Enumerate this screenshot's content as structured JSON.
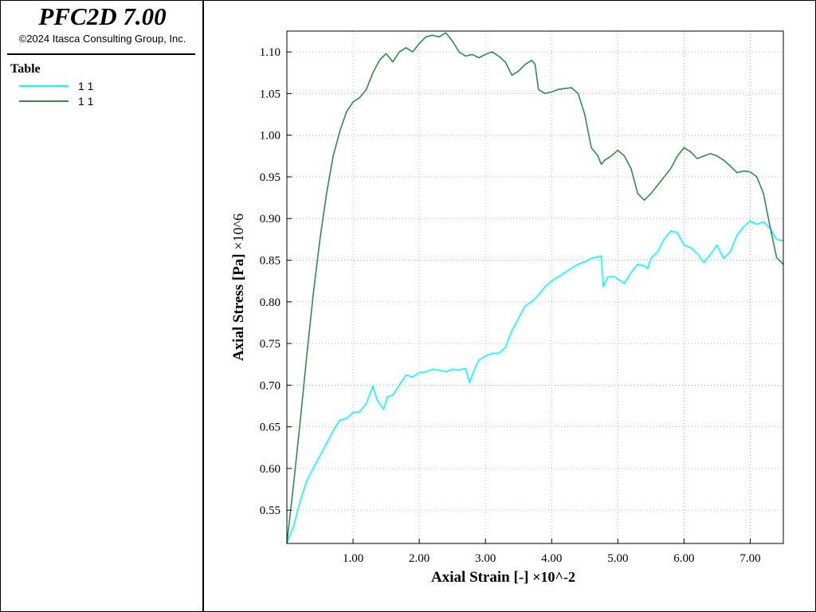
{
  "app": {
    "title": "PFC2D 7.00",
    "copyright": "©2024 Itasca Consulting Group, Inc."
  },
  "legend": {
    "heading": "Table",
    "entries": [
      {
        "label": "1 1",
        "color": "#00ffff"
      },
      {
        "label": "1 1",
        "color": "#2e8b57"
      }
    ]
  },
  "chart_data": {
    "type": "line",
    "xlabel": "Axial Strain [-]",
    "xmultiplier": "×10^-2",
    "ylabel": "Axial Stress [Pa]",
    "ymultiplier": "×10^6",
    "xlim": [
      0.0,
      7.5
    ],
    "ylim": [
      0.51,
      1.125
    ],
    "xticks": [
      1.0,
      2.0,
      3.0,
      4.0,
      5.0,
      6.0,
      7.0
    ],
    "xtick_labels": [
      "1.00",
      "2.00",
      "3.00",
      "4.00",
      "5.00",
      "6.00",
      "7.00"
    ],
    "yticks": [
      0.55,
      0.6,
      0.65,
      0.7,
      0.75,
      0.8,
      0.85,
      0.9,
      0.95,
      1.0,
      1.05,
      1.1
    ],
    "ytick_labels": [
      "0.55",
      "0.60",
      "0.65",
      "0.70",
      "0.75",
      "0.80",
      "0.85",
      "0.90",
      "0.95",
      "1.00",
      "1.05",
      "1.10"
    ],
    "grid": true,
    "legend_position": "sidebar",
    "series": [
      {
        "color": "#00ffff",
        "points": [
          [
            0.0,
            0.51
          ],
          [
            0.1,
            0.53
          ],
          [
            0.2,
            0.56
          ],
          [
            0.3,
            0.585
          ],
          [
            0.4,
            0.6
          ],
          [
            0.5,
            0.615
          ],
          [
            0.6,
            0.63
          ],
          [
            0.7,
            0.645
          ],
          [
            0.8,
            0.658
          ],
          [
            0.9,
            0.66
          ],
          [
            1.0,
            0.667
          ],
          [
            1.1,
            0.668
          ],
          [
            1.2,
            0.678
          ],
          [
            1.3,
            0.699
          ],
          [
            1.36,
            0.683
          ],
          [
            1.4,
            0.678
          ],
          [
            1.46,
            0.671
          ],
          [
            1.52,
            0.686
          ],
          [
            1.6,
            0.688
          ],
          [
            1.7,
            0.7
          ],
          [
            1.8,
            0.712
          ],
          [
            1.9,
            0.71
          ],
          [
            2.0,
            0.715
          ],
          [
            2.1,
            0.716
          ],
          [
            2.2,
            0.719
          ],
          [
            2.3,
            0.718
          ],
          [
            2.4,
            0.716
          ],
          [
            2.5,
            0.719
          ],
          [
            2.6,
            0.718
          ],
          [
            2.7,
            0.72
          ],
          [
            2.76,
            0.703
          ],
          [
            2.82,
            0.716
          ],
          [
            2.9,
            0.73
          ],
          [
            3.0,
            0.735
          ],
          [
            3.1,
            0.738
          ],
          [
            3.2,
            0.738
          ],
          [
            3.3,
            0.745
          ],
          [
            3.4,
            0.765
          ],
          [
            3.5,
            0.78
          ],
          [
            3.6,
            0.795
          ],
          [
            3.7,
            0.8
          ],
          [
            3.8,
            0.808
          ],
          [
            3.9,
            0.818
          ],
          [
            4.0,
            0.825
          ],
          [
            4.1,
            0.83
          ],
          [
            4.2,
            0.835
          ],
          [
            4.3,
            0.84
          ],
          [
            4.4,
            0.845
          ],
          [
            4.5,
            0.848
          ],
          [
            4.6,
            0.852
          ],
          [
            4.75,
            0.855
          ],
          [
            4.78,
            0.818
          ],
          [
            4.85,
            0.83
          ],
          [
            4.95,
            0.83
          ],
          [
            5.1,
            0.822
          ],
          [
            5.2,
            0.835
          ],
          [
            5.3,
            0.845
          ],
          [
            5.4,
            0.843
          ],
          [
            5.45,
            0.84
          ],
          [
            5.5,
            0.852
          ],
          [
            5.6,
            0.86
          ],
          [
            5.7,
            0.875
          ],
          [
            5.8,
            0.885
          ],
          [
            5.9,
            0.883
          ],
          [
            6.0,
            0.868
          ],
          [
            6.1,
            0.865
          ],
          [
            6.2,
            0.858
          ],
          [
            6.3,
            0.847
          ],
          [
            6.4,
            0.857
          ],
          [
            6.5,
            0.868
          ],
          [
            6.6,
            0.852
          ],
          [
            6.7,
            0.86
          ],
          [
            6.8,
            0.88
          ],
          [
            6.9,
            0.89
          ],
          [
            7.0,
            0.897
          ],
          [
            7.1,
            0.893
          ],
          [
            7.2,
            0.896
          ],
          [
            7.3,
            0.888
          ],
          [
            7.4,
            0.875
          ],
          [
            7.5,
            0.873
          ]
        ]
      },
      {
        "color": "#2e8b57",
        "points": [
          [
            0.0,
            0.51
          ],
          [
            0.1,
            0.58
          ],
          [
            0.2,
            0.655
          ],
          [
            0.3,
            0.735
          ],
          [
            0.4,
            0.81
          ],
          [
            0.5,
            0.875
          ],
          [
            0.6,
            0.93
          ],
          [
            0.7,
            0.975
          ],
          [
            0.8,
            1.005
          ],
          [
            0.9,
            1.028
          ],
          [
            1.0,
            1.04
          ],
          [
            1.1,
            1.045
          ],
          [
            1.2,
            1.055
          ],
          [
            1.3,
            1.075
          ],
          [
            1.4,
            1.09
          ],
          [
            1.5,
            1.098
          ],
          [
            1.6,
            1.088
          ],
          [
            1.7,
            1.1
          ],
          [
            1.8,
            1.105
          ],
          [
            1.9,
            1.1
          ],
          [
            2.0,
            1.11
          ],
          [
            2.1,
            1.118
          ],
          [
            2.2,
            1.12
          ],
          [
            2.3,
            1.118
          ],
          [
            2.4,
            1.123
          ],
          [
            2.5,
            1.113
          ],
          [
            2.6,
            1.1
          ],
          [
            2.7,
            1.095
          ],
          [
            2.8,
            1.097
          ],
          [
            2.9,
            1.093
          ],
          [
            3.0,
            1.097
          ],
          [
            3.1,
            1.1
          ],
          [
            3.2,
            1.095
          ],
          [
            3.3,
            1.088
          ],
          [
            3.4,
            1.072
          ],
          [
            3.5,
            1.077
          ],
          [
            3.6,
            1.085
          ],
          [
            3.7,
            1.09
          ],
          [
            3.75,
            1.085
          ],
          [
            3.8,
            1.055
          ],
          [
            3.9,
            1.05
          ],
          [
            4.0,
            1.052
          ],
          [
            4.1,
            1.055
          ],
          [
            4.2,
            1.056
          ],
          [
            4.3,
            1.057
          ],
          [
            4.4,
            1.05
          ],
          [
            4.5,
            1.025
          ],
          [
            4.6,
            0.985
          ],
          [
            4.7,
            0.975
          ],
          [
            4.75,
            0.965
          ],
          [
            4.8,
            0.97
          ],
          [
            4.9,
            0.975
          ],
          [
            5.0,
            0.982
          ],
          [
            5.1,
            0.975
          ],
          [
            5.2,
            0.96
          ],
          [
            5.3,
            0.93
          ],
          [
            5.4,
            0.922
          ],
          [
            5.5,
            0.93
          ],
          [
            5.6,
            0.94
          ],
          [
            5.7,
            0.95
          ],
          [
            5.8,
            0.96
          ],
          [
            5.9,
            0.975
          ],
          [
            6.0,
            0.985
          ],
          [
            6.1,
            0.98
          ],
          [
            6.2,
            0.972
          ],
          [
            6.3,
            0.975
          ],
          [
            6.4,
            0.978
          ],
          [
            6.5,
            0.975
          ],
          [
            6.6,
            0.97
          ],
          [
            6.7,
            0.963
          ],
          [
            6.8,
            0.955
          ],
          [
            6.9,
            0.957
          ],
          [
            7.0,
            0.956
          ],
          [
            7.1,
            0.95
          ],
          [
            7.2,
            0.93
          ],
          [
            7.3,
            0.89
          ],
          [
            7.4,
            0.853
          ],
          [
            7.5,
            0.845
          ]
        ]
      }
    ]
  }
}
